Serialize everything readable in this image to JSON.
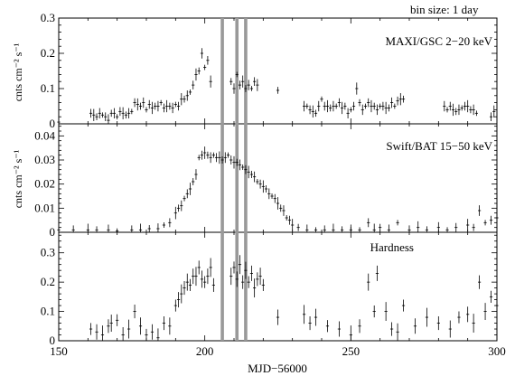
{
  "chart_data": {
    "type": "scatter",
    "annotation": "bin size: 1 day",
    "xlabel": "MJD−56000",
    "xlim": [
      150,
      300
    ],
    "xticks": [
      "150",
      "200",
      "250",
      "300"
    ],
    "highlight_x": [
      206,
      211,
      214
    ],
    "panels": [
      {
        "name": "MAXI/GSC 2−20 keV",
        "ylabel": "cnts cm⁻² s⁻¹",
        "ylim": [
          0,
          0.3
        ],
        "yticks": [
          "0",
          "0.1",
          "0.2",
          "0.3"
        ],
        "points": [
          [
            150,
            0.005
          ],
          [
            161,
            0.03
          ],
          [
            162,
            0.025
          ],
          [
            163,
            0.02
          ],
          [
            164,
            0.03
          ],
          [
            165,
            0.025
          ],
          [
            166,
            0.02
          ],
          [
            167,
            0.01
          ],
          [
            168,
            0.03
          ],
          [
            169,
            0.03
          ],
          [
            170,
            0.02
          ],
          [
            171,
            0.035
          ],
          [
            172,
            0.03
          ],
          [
            173,
            0.025
          ],
          [
            174,
            0.03
          ],
          [
            175,
            0.035
          ],
          [
            176,
            0.06
          ],
          [
            177,
            0.055
          ],
          [
            178,
            0.05
          ],
          [
            179,
            0.06
          ],
          [
            180,
            0.04
          ],
          [
            181,
            0.055
          ],
          [
            182,
            0.045
          ],
          [
            183,
            0.05
          ],
          [
            184,
            0.05
          ],
          [
            185,
            0.06
          ],
          [
            186,
            0.045
          ],
          [
            187,
            0.05
          ],
          [
            188,
            0.05
          ],
          [
            189,
            0.045
          ],
          [
            190,
            0.055
          ],
          [
            191,
            0.05
          ],
          [
            192,
            0.07
          ],
          [
            193,
            0.07
          ],
          [
            194,
            0.08
          ],
          [
            195,
            0.09
          ],
          [
            196,
            0.11
          ],
          [
            197,
            0.14
          ],
          [
            198,
            0.15
          ],
          [
            199,
            0.2
          ],
          [
            200,
            0.16
          ],
          [
            201,
            0.18
          ],
          [
            202,
            0.12
          ],
          [
            209,
            0.12
          ],
          [
            210,
            0.1
          ],
          [
            211,
            0.14
          ],
          [
            212,
            0.11
          ],
          [
            213,
            0.12
          ],
          [
            214,
            0.1
          ],
          [
            215,
            0.11
          ],
          [
            216,
            0.1
          ],
          [
            217,
            0.12
          ],
          [
            218,
            0.11
          ],
          [
            225,
            0.095
          ],
          [
            234,
            0.05
          ],
          [
            235,
            0.05
          ],
          [
            236,
            0.04
          ],
          [
            237,
            0.035
          ],
          [
            238,
            0.03
          ],
          [
            239,
            0.05
          ],
          [
            240,
            0.07
          ],
          [
            241,
            0.05
          ],
          [
            242,
            0.05
          ],
          [
            243,
            0.045
          ],
          [
            244,
            0.05
          ],
          [
            245,
            0.05
          ],
          [
            246,
            0.06
          ],
          [
            247,
            0.045
          ],
          [
            248,
            0.05
          ],
          [
            249,
            0.03
          ],
          [
            250,
            0.04
          ],
          [
            251,
            0.05
          ],
          [
            252,
            0.1
          ],
          [
            253,
            0.06
          ],
          [
            254,
            0.04
          ],
          [
            255,
            0.05
          ],
          [
            256,
            0.06
          ],
          [
            257,
            0.05
          ],
          [
            258,
            0.05
          ],
          [
            259,
            0.04
          ],
          [
            260,
            0.05
          ],
          [
            261,
            0.05
          ],
          [
            262,
            0.045
          ],
          [
            263,
            0.045
          ],
          [
            264,
            0.06
          ],
          [
            265,
            0.05
          ],
          [
            266,
            0.065
          ],
          [
            267,
            0.07
          ],
          [
            268,
            0.07
          ],
          [
            282,
            0.05
          ],
          [
            283,
            0.04
          ],
          [
            284,
            0.05
          ],
          [
            285,
            0.04
          ],
          [
            286,
            0.035
          ],
          [
            287,
            0.04
          ],
          [
            288,
            0.045
          ],
          [
            289,
            0.05
          ],
          [
            290,
            0.05
          ],
          [
            291,
            0.04
          ],
          [
            292,
            0.04
          ],
          [
            293,
            0.03
          ],
          [
            298,
            0.02
          ],
          [
            299,
            0.035
          ]
        ]
      },
      {
        "name": "Swift/BAT 15−50 keV",
        "ylabel": "cnts cm⁻² s⁻¹",
        "ylim": [
          0,
          0.045
        ],
        "yticks": [
          "0",
          "0.01",
          "0.02",
          "0.03",
          "0.04"
        ],
        "points": [
          [
            150,
            0.001
          ],
          [
            155,
            0.001
          ],
          [
            160,
            0.001
          ],
          [
            163,
            0.001
          ],
          [
            167,
            0.001
          ],
          [
            170,
            0.0005
          ],
          [
            175,
            0.001
          ],
          [
            178,
            0.001
          ],
          [
            181,
            0.0015
          ],
          [
            184,
            0.0015
          ],
          [
            186,
            0.003
          ],
          [
            188,
            0.004
          ],
          [
            190,
            0.008
          ],
          [
            191,
            0.01
          ],
          [
            192,
            0.011
          ],
          [
            193,
            0.014
          ],
          [
            194,
            0.016
          ],
          [
            195,
            0.018
          ],
          [
            196,
            0.021
          ],
          [
            197,
            0.024
          ],
          [
            198,
            0.031
          ],
          [
            199,
            0.032
          ],
          [
            200,
            0.033
          ],
          [
            201,
            0.032
          ],
          [
            202,
            0.031
          ],
          [
            203,
            0.032
          ],
          [
            204,
            0.031
          ],
          [
            205,
            0.031
          ],
          [
            206,
            0.03
          ],
          [
            207,
            0.031
          ],
          [
            208,
            0.032
          ],
          [
            209,
            0.03
          ],
          [
            210,
            0.029
          ],
          [
            211,
            0.029
          ],
          [
            212,
            0.028
          ],
          [
            213,
            0.027
          ],
          [
            214,
            0.026
          ],
          [
            215,
            0.025
          ],
          [
            216,
            0.024
          ],
          [
            217,
            0.023
          ],
          [
            218,
            0.021
          ],
          [
            219,
            0.02
          ],
          [
            220,
            0.019
          ],
          [
            221,
            0.018
          ],
          [
            222,
            0.016
          ],
          [
            223,
            0.015
          ],
          [
            224,
            0.014
          ],
          [
            225,
            0.012
          ],
          [
            226,
            0.01
          ],
          [
            227,
            0.009
          ],
          [
            228,
            0.006
          ],
          [
            229,
            0.005
          ],
          [
            230,
            0.003
          ],
          [
            232,
            0.002
          ],
          [
            235,
            0.001
          ],
          [
            238,
            0.001
          ],
          [
            241,
            0.001
          ],
          [
            244,
            0.001
          ],
          [
            247,
            0.001
          ],
          [
            250,
            0.001
          ],
          [
            253,
            0.001
          ],
          [
            256,
            0.004
          ],
          [
            258,
            0.001
          ],
          [
            260,
            0.002
          ],
          [
            263,
            0.001
          ],
          [
            266,
            0.004
          ],
          [
            270,
            0.001
          ],
          [
            273,
            0.002
          ],
          [
            276,
            0.001
          ],
          [
            280,
            0.002
          ],
          [
            283,
            0.001
          ],
          [
            286,
            0.002
          ],
          [
            290,
            0.003
          ],
          [
            292,
            0.002
          ],
          [
            294,
            0.009
          ],
          [
            296,
            0.004
          ],
          [
            298,
            0.005
          ],
          [
            300,
            0.006
          ]
        ]
      },
      {
        "name": "Hardness",
        "ylabel": "",
        "ylim": [
          0,
          0.37
        ],
        "yticks": [
          "0",
          "0.1",
          "0.2",
          "0.3"
        ],
        "points": [
          [
            161,
            0.04
          ],
          [
            163,
            0.03
          ],
          [
            165,
            0.02
          ],
          [
            167,
            0.05
          ],
          [
            168,
            0.06
          ],
          [
            170,
            0.07
          ],
          [
            172,
            0.02
          ],
          [
            174,
            0.04
          ],
          [
            176,
            0.1
          ],
          [
            178,
            0.05
          ],
          [
            180,
            0.02
          ],
          [
            182,
            0.03
          ],
          [
            184,
            0.01
          ],
          [
            186,
            0.06
          ],
          [
            188,
            0.05
          ],
          [
            190,
            0.12
          ],
          [
            191,
            0.14
          ],
          [
            192,
            0.16
          ],
          [
            193,
            0.18
          ],
          [
            194,
            0.2
          ],
          [
            195,
            0.19
          ],
          [
            196,
            0.22
          ],
          [
            197,
            0.22
          ],
          [
            198,
            0.25
          ],
          [
            199,
            0.21
          ],
          [
            200,
            0.2
          ],
          [
            201,
            0.22
          ],
          [
            202,
            0.25
          ],
          [
            203,
            0.19
          ],
          [
            209,
            0.22
          ],
          [
            210,
            0.25
          ],
          [
            211,
            0.21
          ],
          [
            212,
            0.26
          ],
          [
            213,
            0.2
          ],
          [
            214,
            0.24
          ],
          [
            215,
            0.2
          ],
          [
            216,
            0.23
          ],
          [
            217,
            0.18
          ],
          [
            218,
            0.21
          ],
          [
            219,
            0.22
          ],
          [
            220,
            0.19
          ],
          [
            225,
            0.08
          ],
          [
            234,
            0.09
          ],
          [
            236,
            0.06
          ],
          [
            238,
            0.08
          ],
          [
            242,
            0.05
          ],
          [
            246,
            0.04
          ],
          [
            250,
            0.02
          ],
          [
            253,
            0.05
          ],
          [
            256,
            0.2
          ],
          [
            258,
            0.1
          ],
          [
            259,
            0.23
          ],
          [
            262,
            0.1
          ],
          [
            264,
            0.04
          ],
          [
            266,
            0.03
          ],
          [
            268,
            0.12
          ],
          [
            272,
            0.05
          ],
          [
            276,
            0.08
          ],
          [
            280,
            0.06
          ],
          [
            284,
            0.04
          ],
          [
            287,
            0.08
          ],
          [
            290,
            0.09
          ],
          [
            292,
            0.06
          ],
          [
            294,
            0.2
          ],
          [
            296,
            0.1
          ],
          [
            298,
            0.15
          ],
          [
            300,
            0.12
          ]
        ]
      }
    ]
  }
}
